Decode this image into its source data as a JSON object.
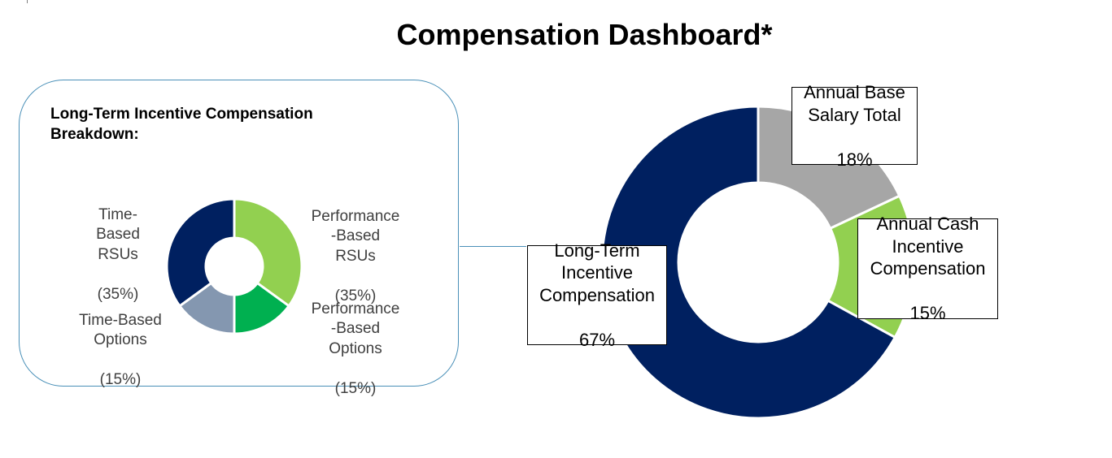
{
  "chart_data": [
    {
      "type": "pie",
      "title": "Compensation Dashboard*",
      "slices": [
        {
          "label": "Annual Base Salary Total",
          "value": 18,
          "pct_label": "18%",
          "color": "#a6a6a6"
        },
        {
          "label": "Annual Cash Incentive Compensation",
          "value": 15,
          "pct_label": "15%",
          "color": "#92d050"
        },
        {
          "label": "Long-Term Incentive Compensation",
          "value": 67,
          "pct_label": "67%",
          "color": "#002060"
        }
      ]
    },
    {
      "type": "pie",
      "title": "Long-Term Incentive Compensation Breakdown:",
      "slices": [
        {
          "label": "Performance\n-Based\nRSUs",
          "value": 35,
          "pct_label": "(35%)",
          "color": "#92d050"
        },
        {
          "label": "Performance\n-Based\nOptions",
          "value": 15,
          "pct_label": "(15%)",
          "color": "#00b050"
        },
        {
          "label": "Time-Based\nOptions",
          "value": 15,
          "pct_label": "(15%)",
          "color": "#8497b0"
        },
        {
          "label": "Time-\nBased\nRSUs",
          "value": 35,
          "pct_label": "(35%)",
          "color": "#002060"
        }
      ]
    }
  ],
  "colors": {
    "panel_border": "#4a90b8",
    "slice_separator": "#ffffff"
  }
}
